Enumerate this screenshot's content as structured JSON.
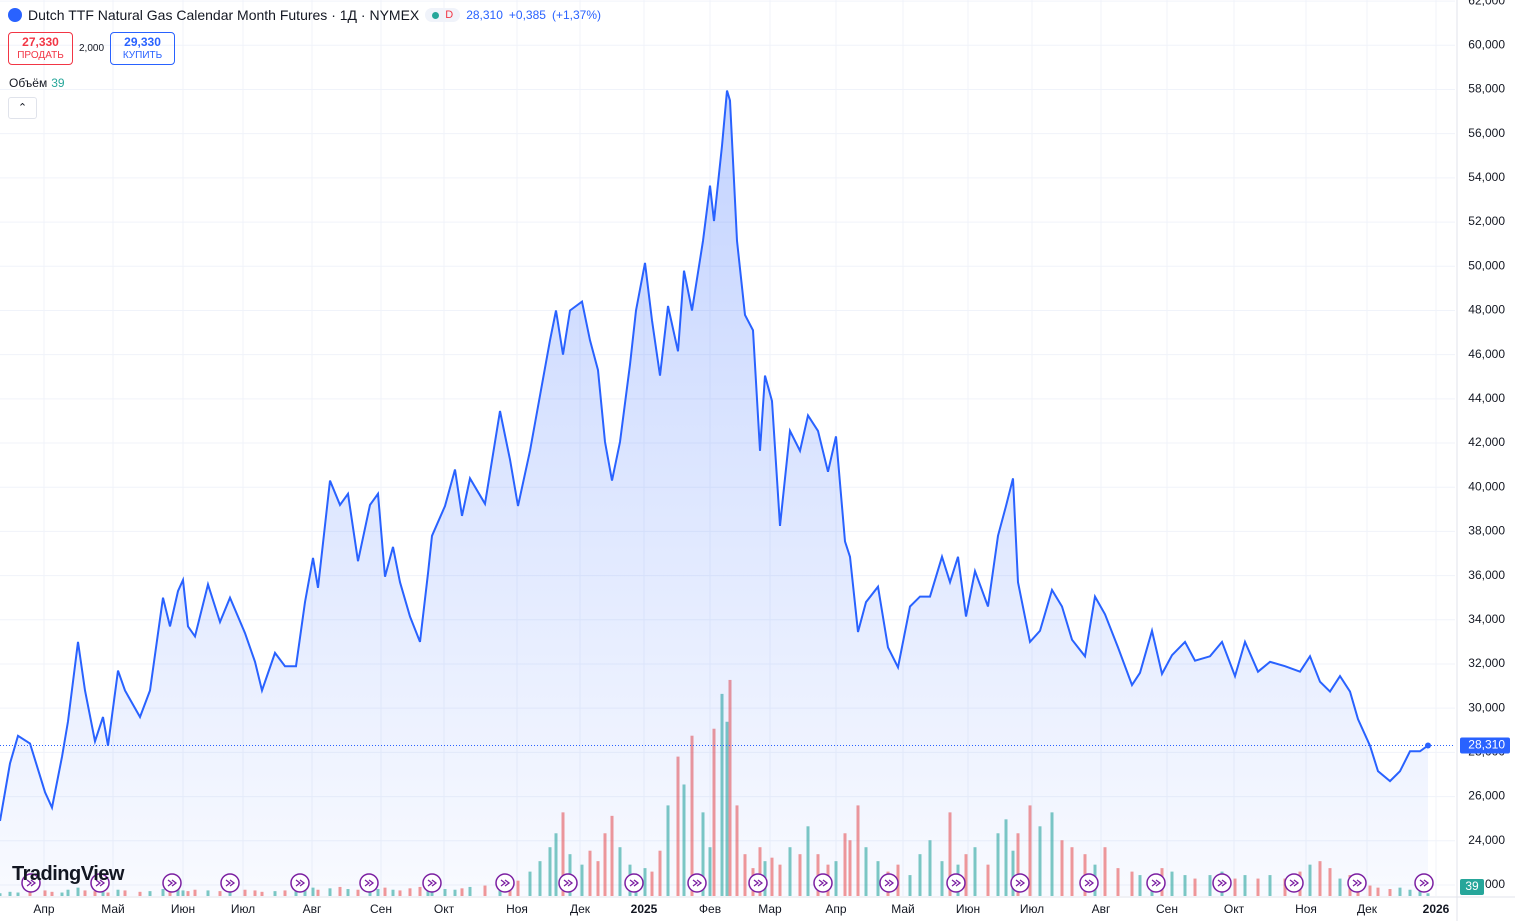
{
  "header": {
    "title": "Dutch TTF Natural Gas Calendar Month Futures · 1Д · NYMEX",
    "interval_badge": "D",
    "last": "28,310",
    "change": "+0,385",
    "change_pct": "(+1,37%)",
    "sell_price": "27,330",
    "sell_label": "ПРОДАТЬ",
    "spread": "2,000",
    "buy_price": "29,330",
    "buy_label": "КУПИТЬ",
    "volume_label": "Объём",
    "volume_value": "39",
    "logo": "TradingView"
  },
  "chart_data": {
    "type": "line",
    "xlim": [
      0,
      291
    ],
    "ylim": [
      21500,
      62050
    ],
    "y2lim": [
      0,
      3300
    ],
    "grid": true,
    "xticks": [
      {
        "value": 8.8,
        "label": "Апр"
      },
      {
        "value": 22.6,
        "label": "Май"
      },
      {
        "value": 36.6,
        "label": "Июн"
      },
      {
        "value": 48.6,
        "label": "Июл"
      },
      {
        "value": 62.4,
        "label": "Авг"
      },
      {
        "value": 76.2,
        "label": "Сен"
      },
      {
        "value": 88.8,
        "label": "Окт"
      },
      {
        "value": 103.4,
        "label": "Ноя"
      },
      {
        "value": 116,
        "label": "Дек"
      },
      {
        "value": 128.8,
        "label": "2025"
      },
      {
        "value": 142,
        "label": "Фев"
      },
      {
        "value": 154,
        "label": "Мар"
      },
      {
        "value": 167.2,
        "label": "Апр"
      },
      {
        "value": 180.6,
        "label": "Май"
      },
      {
        "value": 193.6,
        "label": "Июн"
      },
      {
        "value": 206.4,
        "label": "Июл"
      },
      {
        "value": 220.2,
        "label": "Авг"
      },
      {
        "value": 233.4,
        "label": "Сен"
      },
      {
        "value": 246.8,
        "label": "Окт"
      },
      {
        "value": 261.2,
        "label": "Ноя"
      },
      {
        "value": 273.4,
        "label": "Дек"
      },
      {
        "value": 287.2,
        "label": "2026"
      }
    ],
    "yticks": [
      {
        "value": 22000,
        "label": "22,000"
      },
      {
        "value": 24000,
        "label": "24,000"
      },
      {
        "value": 26000,
        "label": "26,000"
      },
      {
        "value": 28000,
        "label": "28,000"
      },
      {
        "value": 30000,
        "label": "30,000"
      },
      {
        "value": 32000,
        "label": "32,000"
      },
      {
        "value": 34000,
        "label": "34,000"
      },
      {
        "value": 36000,
        "label": "36,000"
      },
      {
        "value": 38000,
        "label": "38,000"
      },
      {
        "value": 40000,
        "label": "40,000"
      },
      {
        "value": 42000,
        "label": "42,000"
      },
      {
        "value": 44000,
        "label": "44,000"
      },
      {
        "value": 46000,
        "label": "46,000"
      },
      {
        "value": 48000,
        "label": "48,000"
      },
      {
        "value": 50000,
        "label": "50,000"
      },
      {
        "value": 52000,
        "label": "52,000"
      },
      {
        "value": 54000,
        "label": "54,000"
      },
      {
        "value": 56000,
        "label": "56,000"
      },
      {
        "value": 58000,
        "label": "58,000"
      },
      {
        "value": 60000,
        "label": "60,000"
      },
      {
        "value": 62000,
        "label": "62,000"
      }
    ],
    "price_tag": "28,310",
    "volume_tag": "39",
    "x": [
      0,
      2,
      3.6,
      6,
      9,
      10.4,
      12.4,
      13.6,
      15.6,
      17,
      19,
      20.6,
      21.6,
      23.6,
      25,
      28,
      30,
      32.6,
      34,
      35.6,
      36.6,
      37.6,
      39,
      41.6,
      44,
      46,
      49,
      51,
      52.4,
      55,
      57,
      59.2,
      61,
      62.6,
      63.6,
      66,
      68,
      69.6,
      71.6,
      74,
      75.6,
      77,
      78.6,
      80,
      82,
      84,
      85.6,
      86.4,
      89,
      91,
      92.4,
      94,
      97,
      100,
      102,
      103.6,
      106,
      108,
      110,
      111.2,
      112.6,
      114,
      116.4,
      118,
      119.6,
      121,
      122.4,
      124,
      126,
      127.2,
      129,
      130.4,
      132,
      133.6,
      135.6,
      136.8,
      138.4,
      140.6,
      142,
      142.8,
      144.4,
      145.4,
      146,
      147.4,
      149,
      150.6,
      152,
      153,
      154.4,
      156,
      158,
      160,
      161.6,
      163.6,
      165.6,
      167.2,
      169,
      170,
      171.6,
      173.2,
      175.6,
      177.6,
      179.6,
      182,
      184,
      186,
      188.4,
      190,
      191.6,
      193.2,
      195,
      197.6,
      199.6,
      201.2,
      202.6,
      203.6,
      206,
      208,
      210.4,
      212.4,
      214.4,
      217,
      219,
      221,
      223.6,
      226.4,
      228,
      230.4,
      232.4,
      234.4,
      237,
      239,
      242,
      244.4,
      247,
      249,
      251.6,
      254,
      257,
      260,
      262,
      264,
      266,
      268,
      270,
      271.6,
      274,
      275.6,
      278,
      280,
      282,
      284,
      285.6
    ],
    "series": [
      {
        "color": "#2962ff",
        "values": [
          24900,
          27500,
          28750,
          28400,
          26200,
          25500,
          27800,
          29400,
          33000,
          30800,
          28500,
          29600,
          28300,
          31700,
          30800,
          29600,
          30800,
          35000,
          33700,
          35300,
          35800,
          33700,
          33250,
          35600,
          33900,
          35000,
          33400,
          32100,
          30800,
          32500,
          31900,
          31900,
          34800,
          36800,
          35450,
          40300,
          39200,
          39700,
          36650,
          39200,
          39700,
          35950,
          37300,
          35700,
          34150,
          33000,
          36100,
          37800,
          39150,
          40800,
          38700,
          40400,
          39250,
          43450,
          41250,
          39150,
          41650,
          44150,
          46650,
          48000,
          46000,
          48000,
          48400,
          46650,
          45300,
          42050,
          40300,
          42050,
          45550,
          48000,
          50150,
          47550,
          45050,
          48200,
          46150,
          49800,
          48000,
          51150,
          53650,
          52050,
          55450,
          57950,
          57500,
          51150,
          47800,
          47100,
          41650,
          45050,
          43900,
          38250,
          42550,
          41650,
          43250,
          42550,
          40700,
          42300,
          37550,
          36850,
          33450,
          34800,
          35500,
          32750,
          31850,
          34600,
          35050,
          35050,
          36850,
          35700,
          36850,
          34150,
          36200,
          34600,
          37800,
          39150,
          40400,
          35700,
          33000,
          33500,
          35350,
          34600,
          33100,
          32350,
          35050,
          34250,
          32750,
          31050,
          31600,
          33500,
          31550,
          32400,
          33000,
          32150,
          32350,
          33000,
          31450,
          33000,
          31650,
          32100,
          31900,
          31650,
          32350,
          31200,
          30750,
          31450,
          30750,
          29500,
          28300,
          27150,
          26700,
          27150,
          28050,
          28050,
          28310
        ]
      },
      {
        "axis": "y2",
        "colors": {
          "up": "#26a69a",
          "down": "#ef5350"
        },
        "values": [
          40,
          60,
          50,
          70,
          80,
          60,
          50,
          90,
          120,
          80,
          70,
          60,
          50,
          90,
          80,
          60,
          70,
          100,
          90,
          110,
          80,
          70,
          90,
          80,
          70,
          100,
          90,
          80,
          60,
          70,
          80,
          90,
          100,
          120,
          90,
          110,
          130,
          100,
          90,
          80,
          100,
          120,
          90,
          80,
          110,
          130,
          150,
          120,
          100,
          90,
          110,
          130,
          150,
          200,
          180,
          220,
          350,
          500,
          700,
          900,
          1200,
          600,
          450,
          650,
          500,
          900,
          1150,
          700,
          450,
          300,
          400,
          350,
          650,
          1300,
          2000,
          1600,
          2300,
          1200,
          700,
          2400,
          2900,
          2500,
          3100,
          1300,
          600,
          400,
          700,
          500,
          550,
          450,
          700,
          600,
          1000,
          600,
          450,
          500,
          900,
          800,
          1300,
          700,
          500,
          350,
          450,
          300,
          600,
          800,
          500,
          1200,
          450,
          600,
          700,
          450,
          900,
          1100,
          650,
          900,
          1300,
          1000,
          1200,
          800,
          700,
          600,
          450,
          700,
          400,
          350,
          300,
          250,
          400,
          350,
          300,
          250,
          300,
          350,
          250,
          300,
          250,
          300,
          250,
          350,
          450,
          500,
          400,
          250,
          300,
          200,
          150,
          120,
          100,
          120,
          90,
          70,
          39
        ]
      }
    ]
  }
}
